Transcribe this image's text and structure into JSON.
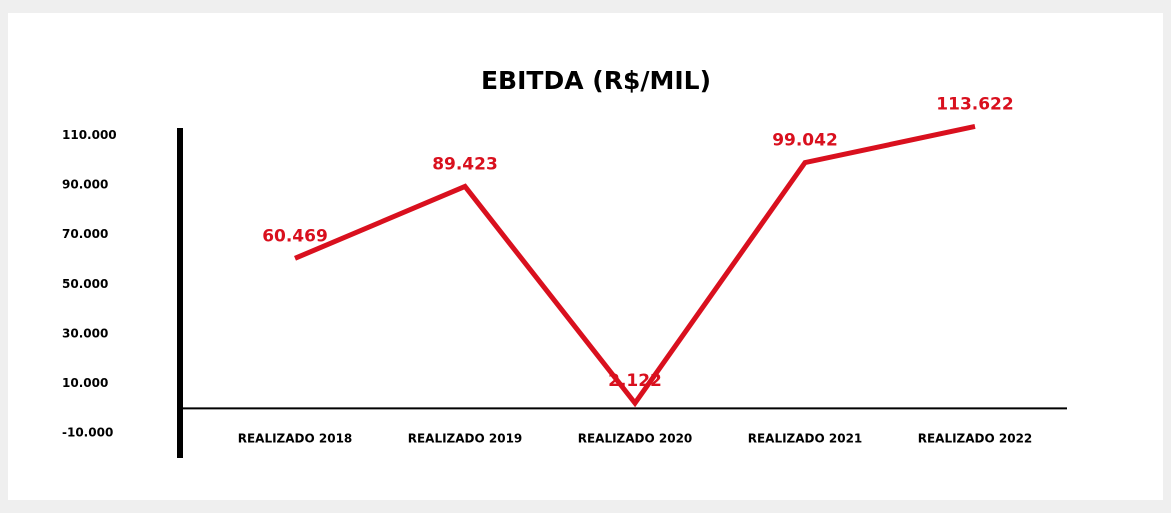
{
  "chart_data": {
    "type": "line",
    "title": "EBITDA (R$/MIL)",
    "categories": [
      "REALIZADO 2018",
      "REALIZADO 2019",
      "REALIZADO 2020",
      "REALIZADO 2021",
      "REALIZADO 2022"
    ],
    "series": [
      {
        "name": "EBITDA",
        "color": "#d9101e",
        "values": [
          60469,
          89423,
          2122,
          99042,
          113622
        ],
        "value_labels": [
          "60.469",
          "89.423",
          "2.122",
          "99.042",
          "113.622"
        ]
      }
    ],
    "ylim": [
      -20000,
      115000
    ],
    "yticks": [
      {
        "value": -10000,
        "label": "-10.000"
      },
      {
        "value": 10000,
        "label": "10.000"
      },
      {
        "value": 30000,
        "label": "30.000"
      },
      {
        "value": 50000,
        "label": "50.000"
      },
      {
        "value": 70000,
        "label": "70.000"
      },
      {
        "value": 90000,
        "label": "90.000"
      },
      {
        "value": 110000,
        "label": "110.000"
      }
    ]
  }
}
